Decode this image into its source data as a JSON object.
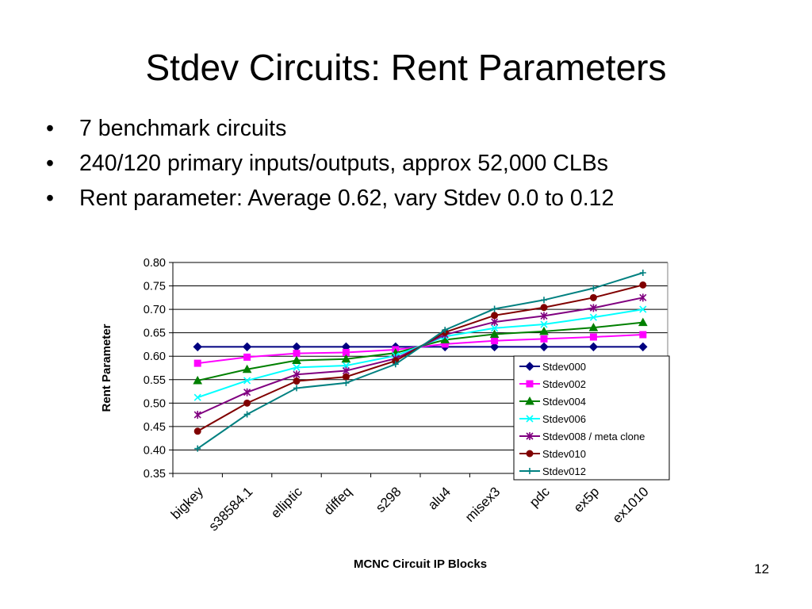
{
  "slide": {
    "title": "Stdev Circuits: Rent Parameters",
    "bullets": [
      "7 benchmark circuits",
      "240/120 primary inputs/outputs, approx 52,000 CLBs",
      "Rent parameter: Average 0.62, vary Stdev 0.0 to 0.12"
    ],
    "bullet_char": "•",
    "page_number": "12"
  },
  "chart_data": {
    "type": "line",
    "xlabel": "MCNC Circuit IP Blocks",
    "ylabel": "Rent Parameter",
    "categories": [
      "bigkey",
      "s38584.1",
      "elliptic",
      "diffeq",
      "s298",
      "alu4",
      "misex3",
      "pdc",
      "ex5p",
      "ex1010"
    ],
    "ylim": [
      0.35,
      0.8
    ],
    "yticks": [
      "0.35",
      "0.40",
      "0.45",
      "0.50",
      "0.55",
      "0.60",
      "0.65",
      "0.70",
      "0.75",
      "0.80"
    ],
    "grid": "horizontal",
    "legend_position": "right",
    "series": [
      {
        "name": "Stdev000",
        "color": "#000080",
        "marker": "diamond",
        "values": [
          0.62,
          0.62,
          0.62,
          0.62,
          0.62,
          0.62,
          0.62,
          0.62,
          0.62,
          0.62
        ]
      },
      {
        "name": "Stdev002",
        "color": "#ff00ff",
        "marker": "square",
        "values": [
          0.585,
          0.598,
          0.606,
          0.608,
          0.614,
          0.626,
          0.633,
          0.637,
          0.641,
          0.646
        ]
      },
      {
        "name": "Stdev004",
        "color": "#008000",
        "marker": "triangle",
        "values": [
          0.548,
          0.572,
          0.591,
          0.594,
          0.607,
          0.635,
          0.647,
          0.653,
          0.661,
          0.672
        ]
      },
      {
        "name": "Stdev006",
        "color": "#00ffff",
        "marker": "x",
        "values": [
          0.512,
          0.548,
          0.576,
          0.58,
          0.601,
          0.642,
          0.66,
          0.668,
          0.683,
          0.7
        ]
      },
      {
        "name": "Stdev008 / meta clone",
        "color": "#800080",
        "marker": "asterisk",
        "values": [
          0.475,
          0.523,
          0.561,
          0.569,
          0.595,
          0.646,
          0.673,
          0.686,
          0.703,
          0.725
        ]
      },
      {
        "name": "Stdev010",
        "color": "#800000",
        "marker": "circle",
        "values": [
          0.44,
          0.5,
          0.547,
          0.556,
          0.59,
          0.651,
          0.687,
          0.704,
          0.725,
          0.752
        ]
      },
      {
        "name": "Stdev012",
        "color": "#008080",
        "marker": "plus",
        "values": [
          0.403,
          0.476,
          0.532,
          0.543,
          0.583,
          0.656,
          0.701,
          0.72,
          0.745,
          0.778
        ]
      }
    ]
  }
}
